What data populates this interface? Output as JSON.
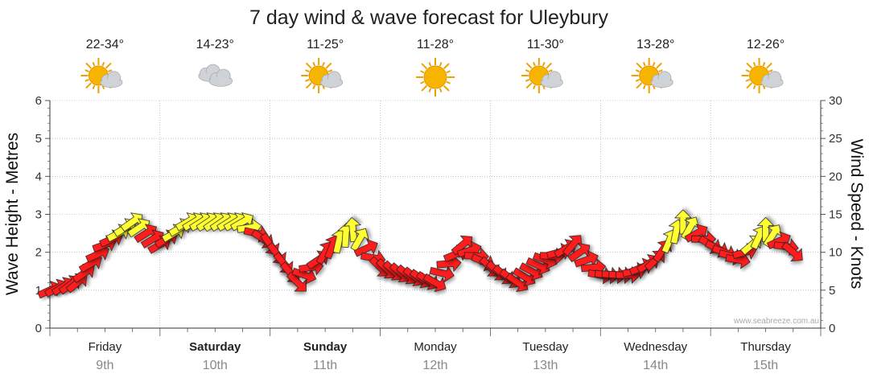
{
  "chart_data": {
    "type": "line",
    "title": "7 day wind & wave forecast for Uleybury",
    "ylabel_left": "Wave Height - Metres",
    "ylabel_right": "Wind Speed - Knots",
    "ylim_left": [
      0,
      6
    ],
    "ylim_right": [
      0,
      30
    ],
    "yticks_left": [
      "0",
      "1",
      "2",
      "3",
      "4",
      "5",
      "6"
    ],
    "yticks_right": [
      "0",
      "5",
      "10",
      "15",
      "20",
      "25",
      "30"
    ],
    "grid": true,
    "credit": "www.seabreeze.com.au",
    "days": [
      {
        "day": "Friday",
        "date": "9th",
        "temp": "22-34°",
        "weather_icon": "sun-cloud-icon",
        "bold": false
      },
      {
        "day": "Saturday",
        "date": "10th",
        "temp": "14-23°",
        "weather_icon": "cloud-icon",
        "bold": true
      },
      {
        "day": "Sunday",
        "date": "11th",
        "temp": "11-25°",
        "weather_icon": "sun-cloud-icon",
        "bold": true
      },
      {
        "day": "Monday",
        "date": "12th",
        "temp": "11-28°",
        "weather_icon": "sun-icon",
        "bold": false
      },
      {
        "day": "Tuesday",
        "date": "13th",
        "temp": "11-30°",
        "weather_icon": "sun-cloud-icon",
        "bold": false
      },
      {
        "day": "Wednesday",
        "date": "14th",
        "temp": "13-28°",
        "weather_icon": "sun-cloud-icon",
        "bold": false
      },
      {
        "day": "Thursday",
        "date": "15th",
        "temp": "12-26°",
        "weather_icon": "sun-cloud-icon",
        "bold": false
      }
    ],
    "series": [
      {
        "name": "Wind Speed - Knots",
        "x_day_offset": [
          0.0,
          0.25,
          0.5,
          0.75,
          1.0,
          1.25,
          1.5,
          1.75,
          2.0,
          2.25,
          2.5,
          2.75,
          3.0,
          3.25,
          3.5,
          3.75,
          4.0,
          4.25,
          4.5,
          4.75,
          5.0,
          5.25,
          5.5,
          5.75,
          6.0,
          6.25,
          6.5,
          6.75
        ],
        "values": [
          5,
          6,
          11,
          14,
          11,
          14,
          14,
          14,
          11,
          6,
          10,
          13,
          8,
          7,
          6,
          11,
          8,
          6,
          9,
          11,
          7,
          7,
          9,
          14,
          11,
          9,
          13,
          10
        ],
        "colors": [
          "red",
          "red",
          "red",
          "yellow",
          "red",
          "yellow",
          "yellow",
          "yellow",
          "red",
          "red",
          "red",
          "yellow",
          "red",
          "red",
          "red",
          "red",
          "red",
          "red",
          "red",
          "red",
          "red",
          "red",
          "red",
          "yellow",
          "red",
          "red",
          "yellow",
          "red"
        ]
      }
    ]
  }
}
